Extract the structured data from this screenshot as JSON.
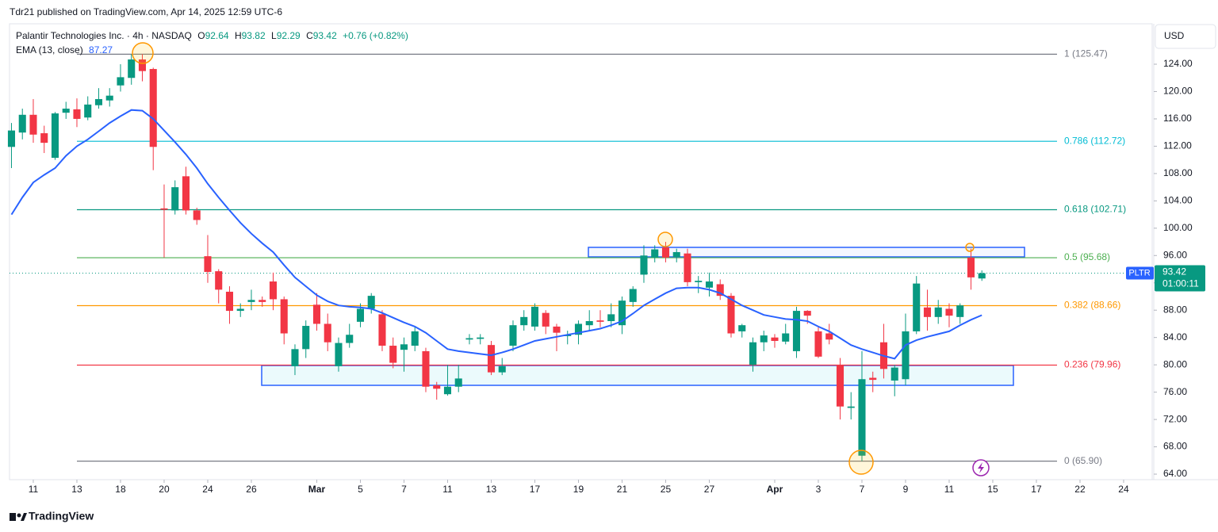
{
  "header": {
    "published": "Tdr21 published on TradingView.com, Apr 14, 2025 12:59 UTC-6",
    "footer": "TradingView"
  },
  "chart_data": {
    "type": "candlestick",
    "legend": {
      "symbol": "Palantir Technologies Inc. · 4h · NASDAQ",
      "o": "O",
      "open": 92.64,
      "h": "H",
      "high": 93.82,
      "l": "L",
      "low": 92.29,
      "c": "C",
      "close": 93.42,
      "change": "+0.76 (+0.82%)"
    },
    "currency": "USD",
    "up_color": "#089981",
    "down_color": "#f23645",
    "open": [
      111.9,
      114,
      116.6,
      113.9,
      110.3,
      116.9,
      117.4,
      116.2,
      118,
      118.7,
      120.9,
      122,
      124.7,
      123.3,
      102.9,
      102.6,
      107.6,
      102.6,
      95.9,
      93.7,
      90.7,
      87.9,
      89.2,
      89.5,
      92.2,
      89.6,
      79.8,
      82.3,
      88.8,
      86,
      79.8,
      83.2,
      86.3,
      88.2,
      87.4,
      82.8,
      82.2,
      82.8,
      82,
      77,
      75.7,
      76.8,
      83.7,
      83.8,
      82.9,
      78.9,
      82.8,
      85.8,
      85.6,
      87.6,
      85.6,
      84.2,
      84.4,
      85.8,
      86.5,
      86.4,
      85.8,
      89.2,
      93.2,
      95.7,
      97.2,
      95.8,
      96.3,
      92.1,
      91.3,
      91.8,
      90.1,
      84.9,
      80,
      83.3,
      84,
      83.4,
      82,
      87.9,
      84.9,
      84.6,
      79.9,
      73.7,
      66.7,
      78.1,
      83.3,
      77.7,
      77.9,
      84.9,
      88.4,
      87,
      88.2,
      87,
      95.7,
      92.64
    ],
    "high": [
      115.4,
      117.5,
      118.9,
      115,
      117,
      118.5,
      119,
      119.3,
      120.5,
      120.5,
      124,
      125.47,
      125.47,
      123.5,
      106.4,
      107,
      109,
      103,
      99,
      94,
      91.5,
      89,
      91,
      90,
      93.5,
      90,
      83,
      86.5,
      90.5,
      87.5,
      84,
      86,
      89,
      90.5,
      88,
      84,
      84,
      85.5,
      82.5,
      77.5,
      80,
      80,
      84.5,
      84.5,
      83.5,
      81,
      86.5,
      88,
      89,
      88,
      86,
      85,
      86.5,
      88,
      88,
      89,
      90,
      91.5,
      97.5,
      97.5,
      98,
      97,
      97,
      93,
      93.5,
      92.5,
      90.5,
      86,
      84,
      85,
      84.5,
      86,
      88.5,
      88,
      85.5,
      86,
      81,
      76,
      82,
      79,
      86,
      80,
      87.5,
      93,
      91,
      89.5,
      89,
      89,
      97,
      93.82
    ],
    "low": [
      108.8,
      113,
      112.5,
      111,
      110,
      116,
      114.8,
      115.8,
      117.5,
      117.8,
      120,
      121,
      121.5,
      108.5,
      95.7,
      102,
      102,
      100.5,
      92,
      89,
      86,
      87,
      88,
      88.5,
      88,
      83,
      78.5,
      81,
      85,
      82,
      79,
      82.5,
      85.5,
      87.5,
      82,
      79.5,
      79,
      82,
      76,
      74.9,
      75.5,
      76,
      83,
      83,
      78.5,
      78.5,
      82,
      85,
      85,
      84.5,
      82,
      83,
      83,
      85,
      85.5,
      85.5,
      84.5,
      88.5,
      92,
      95,
      95,
      95,
      91.5,
      90.5,
      90,
      89.5,
      84,
      84,
      79,
      82,
      82.5,
      83,
      81,
      86,
      81,
      83,
      72,
      72,
      65.9,
      76,
      78,
      75.4,
      77,
      84.5,
      85,
      86,
      85.5,
      86,
      91,
      92.29
    ],
    "close": [
      114.3,
      116.6,
      113.7,
      112.5,
      116.8,
      117.5,
      116,
      118.1,
      118.9,
      119.4,
      122.1,
      124.7,
      123,
      111.9,
      102.7,
      106,
      102.6,
      101.2,
      93.6,
      91,
      87.9,
      88.2,
      89.5,
      89.2,
      89.6,
      84.6,
      82.3,
      85.7,
      86,
      83.3,
      83.2,
      84.4,
      88.2,
      90.1,
      82.8,
      80.3,
      83,
      84.9,
      76.8,
      76.5,
      76.8,
      78,
      83.9,
      84,
      78.9,
      79.8,
      85.8,
      87,
      88.5,
      85.6,
      84.7,
      84.4,
      86,
      86.4,
      86.3,
      87.4,
      89.4,
      91.1,
      96,
      96.9,
      95.7,
      96.5,
      92.1,
      92.3,
      92.2,
      90.1,
      84.6,
      85.8,
      83.3,
      84.3,
      83.5,
      84.6,
      87.9,
      87.2,
      81.2,
      83.7,
      73.9,
      73.9,
      77.9,
      77.8,
      79.4,
      79.6,
      84.9,
      91.9,
      87,
      88.4,
      87.2,
      88.7,
      92.8,
      93.42
    ],
    "ema": {
      "name": "EMA (13, close)",
      "value": 87.27,
      "color": "#2962ff",
      "values": [
        102,
        104.5,
        106.7,
        107.8,
        108.8,
        110.6,
        112,
        113,
        114.2,
        115.4,
        116.4,
        117.3,
        117.2,
        116,
        114.3,
        112.6,
        110.8,
        108.8,
        106.5,
        104.5,
        102.6,
        100.8,
        99.2,
        97.8,
        96.5,
        94.6,
        92.8,
        91.5,
        90.2,
        89.3,
        88.7,
        88.5,
        88.4,
        88.2,
        87.6,
        86.9,
        86.2,
        85.6,
        84.7,
        83.5,
        82.3,
        82,
        81.8,
        81.6,
        81.4,
        81.8,
        82.3,
        82.9,
        83.5,
        83.8,
        84.1,
        84.4,
        84.7,
        85,
        85.3,
        85.8,
        86.4,
        87.5,
        88.7,
        89.6,
        90.5,
        91.2,
        91.3,
        91.3,
        91,
        90.5,
        89.6,
        88.7,
        88,
        87.3,
        87,
        86.7,
        86.6,
        86.4,
        85.6,
        84.9,
        83.9,
        82.9,
        82.3,
        81.8,
        81.3,
        80.9,
        82.9,
        83.6,
        84.1,
        84.5,
        84.9,
        85.8,
        86.6,
        87.27
      ]
    },
    "fib_levels": [
      {
        "label": "1 (125.47)",
        "price": 125.47,
        "color": "#787b86"
      },
      {
        "label": "0.786 (112.72)",
        "price": 112.72,
        "color": "#00bcd4"
      },
      {
        "label": "0.618 (102.71)",
        "price": 102.71,
        "color": "#089981"
      },
      {
        "label": "0.5 (95.68)",
        "price": 95.68,
        "color": "#4caf50"
      },
      {
        "label": "0.382 (88.66)",
        "price": 88.66,
        "color": "#ff9800"
      },
      {
        "label": "0.236 (79.96)",
        "price": 79.96,
        "color": "#f23645"
      },
      {
        "label": "0 (65.90)",
        "price": 65.9,
        "color": "#787b86"
      }
    ],
    "last": {
      "ticker": "PLTR",
      "price": 93.42,
      "countdown": "01:00:11"
    },
    "xlim": [
      -0.18,
      104.62
    ],
    "xticks": [
      {
        "value": 2,
        "label": "11"
      },
      {
        "value": 6,
        "label": "13"
      },
      {
        "value": 10,
        "label": "18"
      },
      {
        "value": 14,
        "label": "20"
      },
      {
        "value": 18,
        "label": "24"
      },
      {
        "value": 22,
        "label": "26"
      },
      {
        "value": 28,
        "label": "Mar"
      },
      {
        "value": 32,
        "label": "5"
      },
      {
        "value": 36,
        "label": "7"
      },
      {
        "value": 40,
        "label": "11"
      },
      {
        "value": 44,
        "label": "13"
      },
      {
        "value": 48,
        "label": "17"
      },
      {
        "value": 52,
        "label": "19"
      },
      {
        "value": 56,
        "label": "21"
      },
      {
        "value": 60,
        "label": "25"
      },
      {
        "value": 64,
        "label": "27"
      },
      {
        "value": 70,
        "label": "Apr"
      },
      {
        "value": 74,
        "label": "3"
      },
      {
        "value": 78,
        "label": "7"
      },
      {
        "value": 82,
        "label": "9"
      },
      {
        "value": 86,
        "label": "11"
      },
      {
        "value": 90,
        "label": "15"
      },
      {
        "value": 94,
        "label": "17"
      },
      {
        "value": 98,
        "label": "22"
      },
      {
        "value": 102,
        "label": "24"
      }
    ],
    "ylim": [
      63.19,
      129.92
    ],
    "yticks": [
      {
        "value": 64,
        "label": "64.00"
      },
      {
        "value": 68,
        "label": "68.00"
      },
      {
        "value": 72,
        "label": "72.00"
      },
      {
        "value": 76,
        "label": "76.00"
      },
      {
        "value": 80,
        "label": "80.00"
      },
      {
        "value": 84,
        "label": "84.00"
      },
      {
        "value": 88,
        "label": "88.00"
      },
      {
        "value": 92,
        "label": "92.00"
      },
      {
        "value": 96,
        "label": "96.00"
      },
      {
        "value": 100,
        "label": "100.00"
      },
      {
        "value": 104,
        "label": "104.00"
      },
      {
        "value": 108,
        "label": "108.00"
      },
      {
        "value": 112,
        "label": "112.00"
      },
      {
        "value": 116,
        "label": "116.00"
      },
      {
        "value": 120,
        "label": "120.00"
      },
      {
        "value": 124,
        "label": "124.00"
      }
    ],
    "grid": false
  }
}
